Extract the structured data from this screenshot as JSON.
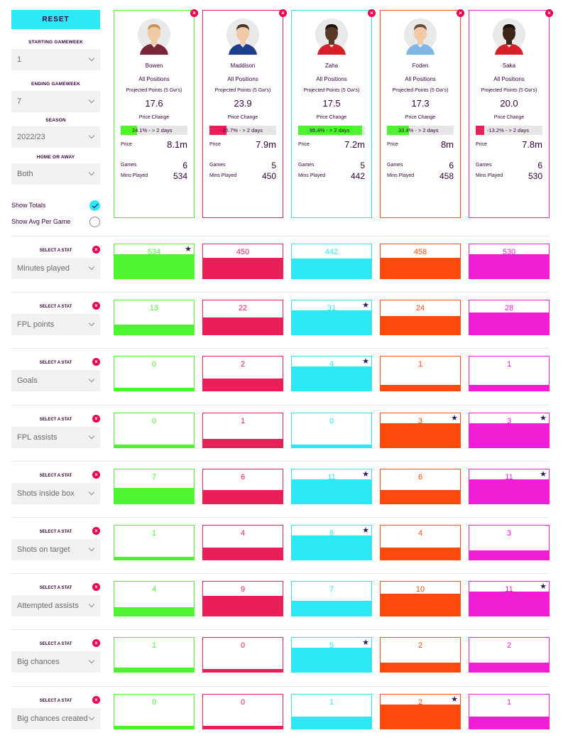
{
  "sidebar": {
    "reset_label": "RESET",
    "filters": [
      {
        "label": "STARTING GAMEWEEK",
        "value": "1"
      },
      {
        "label": "ENDING GAMEWEEK",
        "value": "7"
      },
      {
        "label": "SEASON",
        "value": "2022/23"
      },
      {
        "label": "HOME OR AWAY",
        "value": "Both"
      }
    ],
    "toggles": [
      {
        "label": "Show Totals",
        "checked": true
      },
      {
        "label": "Show Avg Per Game",
        "checked": false
      }
    ]
  },
  "card_labels": {
    "projected": "Projected Points (5 Gw's)",
    "price_change": "Price Change",
    "price": "Price",
    "games": "Games",
    "mins": "Mins Played"
  },
  "players": [
    {
      "name": "Bowen",
      "position": "All Positions",
      "projected": "17.6",
      "price_change_text": "24.1% - > 2 days",
      "price_change_pct": 24.1,
      "price": "8.1m",
      "games": "6",
      "mins": "534",
      "color": "#4cf52d",
      "kit": "#7a263a",
      "skin": "#f0c9a6",
      "hair": "#c9924e"
    },
    {
      "name": "Maddison",
      "position": "All Positions",
      "projected": "23.9",
      "price_change_text": "-25.7% - > 2 days",
      "price_change_pct": -25.7,
      "price": "7.9m",
      "games": "5",
      "mins": "450",
      "color": "#ea1e58",
      "kit": "#1d3e8f",
      "skin": "#f0c9a6",
      "hair": "#4a3426"
    },
    {
      "name": "Zaha",
      "position": "All Positions",
      "projected": "17.5",
      "price_change_text": "95.4% - > 2 days",
      "price_change_pct": 95.4,
      "price": "7.2m",
      "games": "5",
      "mins": "442",
      "color": "#2ce8f5",
      "kit": "#d71f2b",
      "skin": "#5a3826",
      "hair": "#1a1210"
    },
    {
      "name": "Foden",
      "position": "All Positions",
      "projected": "17.3",
      "price_change_text": "33.4% - > 2 days",
      "price_change_pct": 33.4,
      "price": "8m",
      "games": "6",
      "mins": "458",
      "color": "#ff4a0d",
      "kit": "#7fb6e3",
      "skin": "#f0c9a6",
      "hair": "#6b4a33"
    },
    {
      "name": "Saka",
      "position": "All Positions",
      "projected": "20.0",
      "price_change_text": "-13.2% - > 2 days",
      "price_change_pct": -13.2,
      "price": "7.8m",
      "games": "6",
      "mins": "530",
      "color": "#f21ed5",
      "kit": "#d8202b",
      "skin": "#3d2418",
      "hair": "#140d0a"
    }
  ],
  "stat_section_label": "SELECT A STAT",
  "stats": [
    {
      "name": "Minutes played",
      "values": [
        "534",
        "450",
        "442",
        "458",
        "530"
      ],
      "best": [
        0
      ]
    },
    {
      "name": "FPL points",
      "values": [
        "13",
        "22",
        "31",
        "24",
        "28"
      ],
      "best": [
        2
      ]
    },
    {
      "name": "Goals",
      "values": [
        "0",
        "2",
        "4",
        "1",
        "1"
      ],
      "best": [
        2
      ]
    },
    {
      "name": "FPL assists",
      "values": [
        "0",
        "1",
        "0",
        "3",
        "3"
      ],
      "best": [
        3,
        4
      ]
    },
    {
      "name": "Shots inside box",
      "values": [
        "7",
        "6",
        "11",
        "6",
        "11"
      ],
      "best": [
        2,
        4
      ]
    },
    {
      "name": "Shots on target",
      "values": [
        "1",
        "4",
        "8",
        "4",
        "3"
      ],
      "best": [
        2
      ]
    },
    {
      "name": "Attempted assists",
      "values": [
        "4",
        "9",
        "7",
        "10",
        "11"
      ],
      "best": [
        4
      ]
    },
    {
      "name": "Big chances",
      "values": [
        "1",
        "0",
        "5",
        "2",
        "2"
      ],
      "best": [
        2
      ]
    },
    {
      "name": "Big chances created",
      "values": [
        "0",
        "0",
        "1",
        "2",
        "1"
      ],
      "best": [
        3
      ]
    }
  ]
}
